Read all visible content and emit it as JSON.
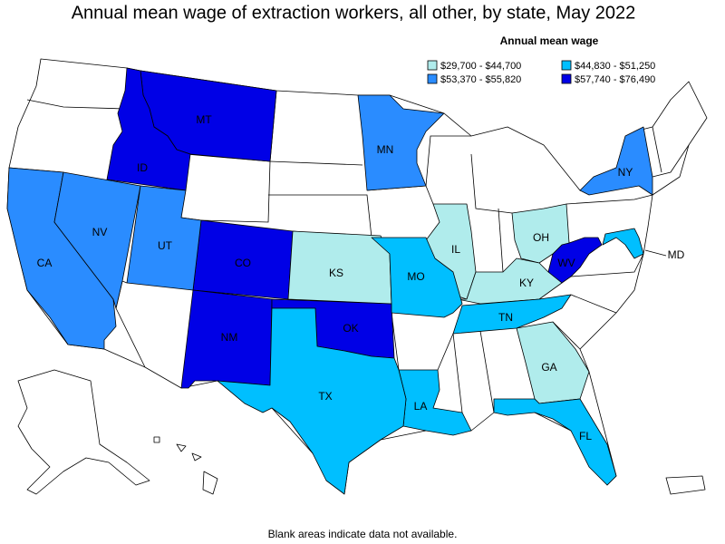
{
  "title": "Annual mean wage of extraction workers, all other, by state, May 2022",
  "legend": {
    "title": "Annual mean wage",
    "items": [
      {
        "label": "$29,700 - $44,700",
        "color": "#b0ecec"
      },
      {
        "label": "$44,830 - $51,250",
        "color": "#00bfff"
      },
      {
        "label": "$53,370 - $55,820",
        "color": "#2a8cff"
      },
      {
        "label": "$57,740 - $76,490",
        "color": "#0000e6"
      }
    ]
  },
  "states": [
    {
      "label": "MT",
      "color": "#0000e6"
    },
    {
      "label": "ID",
      "color": "#0000e6"
    },
    {
      "label": "CO",
      "color": "#0000e6"
    },
    {
      "label": "NM",
      "color": "#0000e6"
    },
    {
      "label": "OK",
      "color": "#0000e6"
    },
    {
      "label": "WV",
      "color": "#0000e6"
    },
    {
      "label": "MN",
      "color": "#2a8cff"
    },
    {
      "label": "NY",
      "color": "#2a8cff"
    },
    {
      "label": "CA",
      "color": "#2a8cff"
    },
    {
      "label": "NV",
      "color": "#2a8cff"
    },
    {
      "label": "UT",
      "color": "#2a8cff"
    },
    {
      "label": "KS",
      "color": "#b0ecec"
    },
    {
      "label": "IL",
      "color": "#b0ecec"
    },
    {
      "label": "OH",
      "color": "#b0ecec"
    },
    {
      "label": "KY",
      "color": "#b0ecec"
    },
    {
      "label": "GA",
      "color": "#b0ecec"
    },
    {
      "label": "MO",
      "color": "#00bfff"
    },
    {
      "label": "TN",
      "color": "#00bfff"
    },
    {
      "label": "FL",
      "color": "#00bfff"
    },
    {
      "label": "LA",
      "color": "#00bfff"
    },
    {
      "label": "TX",
      "color": "#00bfff"
    },
    {
      "label": "MD",
      "color": "#00bfff"
    }
  ],
  "note": "Blank areas indicate data not available."
}
